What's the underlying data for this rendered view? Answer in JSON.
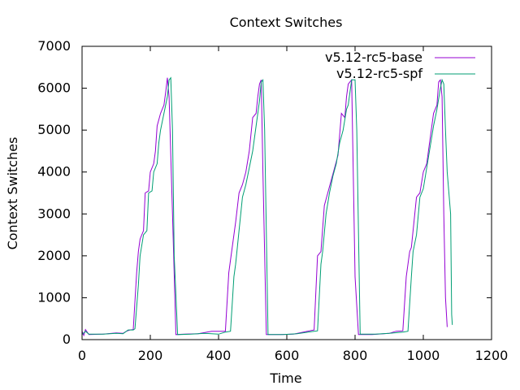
{
  "chart_data": {
    "type": "line",
    "title": "Context Switches",
    "xlabel": "Time",
    "ylabel": "Context Switches",
    "xlim": [
      0,
      1200
    ],
    "ylim": [
      0,
      7000
    ],
    "xticks": [
      "0",
      "200",
      "400",
      "600",
      "800",
      "1000",
      "1200"
    ],
    "yticks": [
      "0",
      "1000",
      "2000",
      "3000",
      "4000",
      "5000",
      "6000",
      "7000"
    ],
    "grid": false,
    "legend_position": "top-right",
    "series": [
      {
        "name": "v5.12-rc5-base",
        "color": "#9400d3",
        "points": [
          [
            0,
            200
          ],
          [
            5,
            100
          ],
          [
            10,
            240
          ],
          [
            20,
            120
          ],
          [
            60,
            130
          ],
          [
            100,
            160
          ],
          [
            120,
            150
          ],
          [
            130,
            200
          ],
          [
            140,
            230
          ],
          [
            150,
            240
          ],
          [
            160,
            1600
          ],
          [
            165,
            2100
          ],
          [
            170,
            2400
          ],
          [
            180,
            2600
          ],
          [
            185,
            3500
          ],
          [
            195,
            3550
          ],
          [
            200,
            4000
          ],
          [
            210,
            4200
          ],
          [
            215,
            4500
          ],
          [
            220,
            5100
          ],
          [
            230,
            5400
          ],
          [
            240,
            5600
          ],
          [
            245,
            5900
          ],
          [
            250,
            6250
          ],
          [
            255,
            5800
          ],
          [
            265,
            3000
          ],
          [
            275,
            120
          ],
          [
            300,
            130
          ],
          [
            340,
            140
          ],
          [
            380,
            200
          ],
          [
            400,
            200
          ],
          [
            420,
            200
          ],
          [
            430,
            1600
          ],
          [
            440,
            2200
          ],
          [
            450,
            2800
          ],
          [
            460,
            3500
          ],
          [
            470,
            3700
          ],
          [
            480,
            4000
          ],
          [
            490,
            4500
          ],
          [
            500,
            5300
          ],
          [
            510,
            5400
          ],
          [
            515,
            5800
          ],
          [
            520,
            6100
          ],
          [
            525,
            6200
          ],
          [
            530,
            4000
          ],
          [
            540,
            120
          ],
          [
            580,
            120
          ],
          [
            620,
            130
          ],
          [
            660,
            200
          ],
          [
            680,
            230
          ],
          [
            690,
            2000
          ],
          [
            700,
            2100
          ],
          [
            710,
            3200
          ],
          [
            720,
            3500
          ],
          [
            730,
            3800
          ],
          [
            740,
            4100
          ],
          [
            750,
            4400
          ],
          [
            760,
            5400
          ],
          [
            770,
            5300
          ],
          [
            775,
            5800
          ],
          [
            780,
            6100
          ],
          [
            790,
            6200
          ],
          [
            800,
            1500
          ],
          [
            810,
            120
          ],
          [
            850,
            120
          ],
          [
            900,
            150
          ],
          [
            920,
            200
          ],
          [
            940,
            210
          ],
          [
            950,
            1500
          ],
          [
            960,
            2100
          ],
          [
            965,
            2200
          ],
          [
            970,
            2600
          ],
          [
            980,
            3400
          ],
          [
            990,
            3500
          ],
          [
            1000,
            4000
          ],
          [
            1010,
            4200
          ],
          [
            1020,
            4800
          ],
          [
            1030,
            5400
          ],
          [
            1040,
            5600
          ],
          [
            1045,
            6150
          ],
          [
            1050,
            6200
          ],
          [
            1055,
            5800
          ],
          [
            1060,
            3000
          ],
          [
            1065,
            1000
          ],
          [
            1070,
            300
          ]
        ]
      },
      {
        "name": "v5.12-rc5-spf",
        "color": "#009e73",
        "points": [
          [
            0,
            120
          ],
          [
            10,
            200
          ],
          [
            20,
            130
          ],
          [
            60,
            130
          ],
          [
            100,
            150
          ],
          [
            120,
            140
          ],
          [
            135,
            230
          ],
          [
            150,
            230
          ],
          [
            155,
            260
          ],
          [
            165,
            1300
          ],
          [
            170,
            2000
          ],
          [
            180,
            2500
          ],
          [
            190,
            2600
          ],
          [
            195,
            3500
          ],
          [
            205,
            3550
          ],
          [
            210,
            4000
          ],
          [
            220,
            4200
          ],
          [
            225,
            4700
          ],
          [
            230,
            5000
          ],
          [
            240,
            5400
          ],
          [
            250,
            5800
          ],
          [
            255,
            6200
          ],
          [
            260,
            6250
          ],
          [
            265,
            5000
          ],
          [
            270,
            2000
          ],
          [
            280,
            120
          ],
          [
            320,
            130
          ],
          [
            360,
            150
          ],
          [
            400,
            130
          ],
          [
            420,
            180
          ],
          [
            435,
            200
          ],
          [
            445,
            1500
          ],
          [
            450,
            1800
          ],
          [
            460,
            2600
          ],
          [
            470,
            3400
          ],
          [
            480,
            3700
          ],
          [
            490,
            4100
          ],
          [
            500,
            4500
          ],
          [
            510,
            5100
          ],
          [
            520,
            5700
          ],
          [
            525,
            6150
          ],
          [
            530,
            6200
          ],
          [
            535,
            5000
          ],
          [
            545,
            120
          ],
          [
            590,
            120
          ],
          [
            630,
            140
          ],
          [
            680,
            200
          ],
          [
            690,
            210
          ],
          [
            700,
            1800
          ],
          [
            705,
            2100
          ],
          [
            715,
            3000
          ],
          [
            725,
            3500
          ],
          [
            735,
            3900
          ],
          [
            745,
            4200
          ],
          [
            755,
            4700
          ],
          [
            765,
            5000
          ],
          [
            775,
            5500
          ],
          [
            780,
            5600
          ],
          [
            785,
            5900
          ],
          [
            790,
            6200
          ],
          [
            800,
            6200
          ],
          [
            805,
            5000
          ],
          [
            815,
            130
          ],
          [
            860,
            130
          ],
          [
            900,
            150
          ],
          [
            940,
            180
          ],
          [
            955,
            200
          ],
          [
            965,
            1500
          ],
          [
            970,
            2100
          ],
          [
            980,
            2500
          ],
          [
            990,
            3400
          ],
          [
            1000,
            3600
          ],
          [
            1010,
            4100
          ],
          [
            1020,
            4600
          ],
          [
            1030,
            5100
          ],
          [
            1040,
            5500
          ],
          [
            1050,
            6000
          ],
          [
            1055,
            6200
          ],
          [
            1060,
            6100
          ],
          [
            1065,
            5000
          ],
          [
            1070,
            4000
          ],
          [
            1080,
            3000
          ],
          [
            1083,
            600
          ],
          [
            1085,
            350
          ]
        ]
      }
    ]
  }
}
